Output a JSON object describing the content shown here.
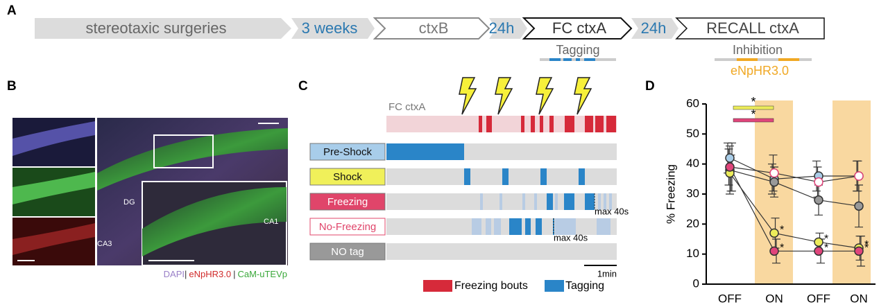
{
  "panels": {
    "a": {
      "letter": "A",
      "steps": [
        "stereotaxic surgeries",
        "3 weeks",
        "ctxB",
        "24h",
        "FC ctxA",
        "24h",
        "RECALL ctxA"
      ],
      "tagging": "Tagging",
      "inhibition": "Inhibition",
      "opsin": "eNpHR3.0"
    },
    "b": {
      "letter": "B",
      "regions": [
        "DG",
        "CA1",
        "CA3"
      ],
      "stains": [
        "DAPI",
        "eNpHR3.0",
        "CaM-uTEVp"
      ],
      "separator": "|"
    },
    "c": {
      "letter": "C",
      "context": "FC ctxA",
      "rows": [
        "Pre-Shock",
        "Shock",
        "Freezing",
        "No-Freezing",
        "NO tag"
      ],
      "max_label": "max 40s",
      "scale": "1min",
      "legend": [
        "Freezing bouts",
        "Tagging"
      ]
    },
    "d": {
      "letter": "D"
    }
  },
  "chart_data": {
    "type": "line",
    "ylabel": "% Freezing",
    "categories": [
      "OFF",
      "ON",
      "OFF",
      "ON"
    ],
    "ylim": [
      0,
      60
    ],
    "yticks": [
      0,
      10,
      20,
      30,
      40,
      50,
      60
    ],
    "series": [
      {
        "color": "#a9cde8",
        "values": [
          42,
          35,
          36,
          36
        ],
        "errors": [
          5,
          5,
          5,
          5
        ]
      },
      {
        "color": "#e0457b",
        "open": true,
        "values": [
          39,
          37,
          34,
          36
        ],
        "errors": [
          6,
          6,
          5,
          5
        ]
      },
      {
        "color": "#999999",
        "values": [
          38,
          34,
          28,
          26
        ],
        "errors": [
          8,
          5,
          5,
          7
        ]
      },
      {
        "color": "#ecec5a",
        "values": [
          37,
          17,
          14,
          12
        ],
        "errors": [
          6,
          5,
          3,
          4
        ],
        "point_labels": [
          null,
          "*",
          "*",
          "*"
        ]
      },
      {
        "color": "#e0457b",
        "values": [
          39,
          11,
          11,
          11
        ],
        "errors": [
          8,
          4,
          4,
          5
        ],
        "point_labels": [
          null,
          "*",
          "*",
          "*"
        ]
      }
    ],
    "significance": [
      {
        "label": "*",
        "color": "#ecec5a"
      },
      {
        "label": "*",
        "color": "#e0457b"
      }
    ]
  }
}
